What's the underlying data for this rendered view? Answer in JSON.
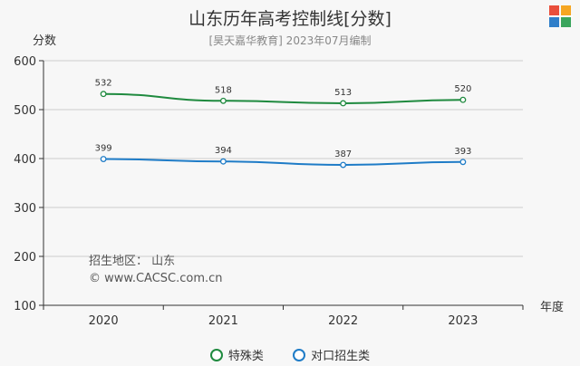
{
  "title": "山东历年高考控制线[分数]",
  "subtitle": "[昊天嘉华教育] 2023年07月编制",
  "watermark": {
    "region": "招生地区： 山东",
    "site": "© www.CACSC.com.cn"
  },
  "colors": {
    "series1": "#1f8a3f",
    "series2": "#1f7cc7",
    "axis": "#333333",
    "grid": "#cccccc"
  },
  "chart_data": {
    "type": "line",
    "title": "山东历年高考控制线[分数]",
    "xlabel": "年度",
    "ylabel": "分数",
    "categories": [
      "2020",
      "2021",
      "2022",
      "2023"
    ],
    "ylim": [
      100,
      600
    ],
    "yticks": [
      100,
      200,
      300,
      400,
      500,
      600
    ],
    "grid": true,
    "legend_position": "bottom",
    "series": [
      {
        "name": "特殊类",
        "values": [
          532,
          518,
          513,
          520
        ]
      },
      {
        "name": "对口招生类",
        "values": [
          399,
          394,
          387,
          393
        ]
      }
    ]
  }
}
